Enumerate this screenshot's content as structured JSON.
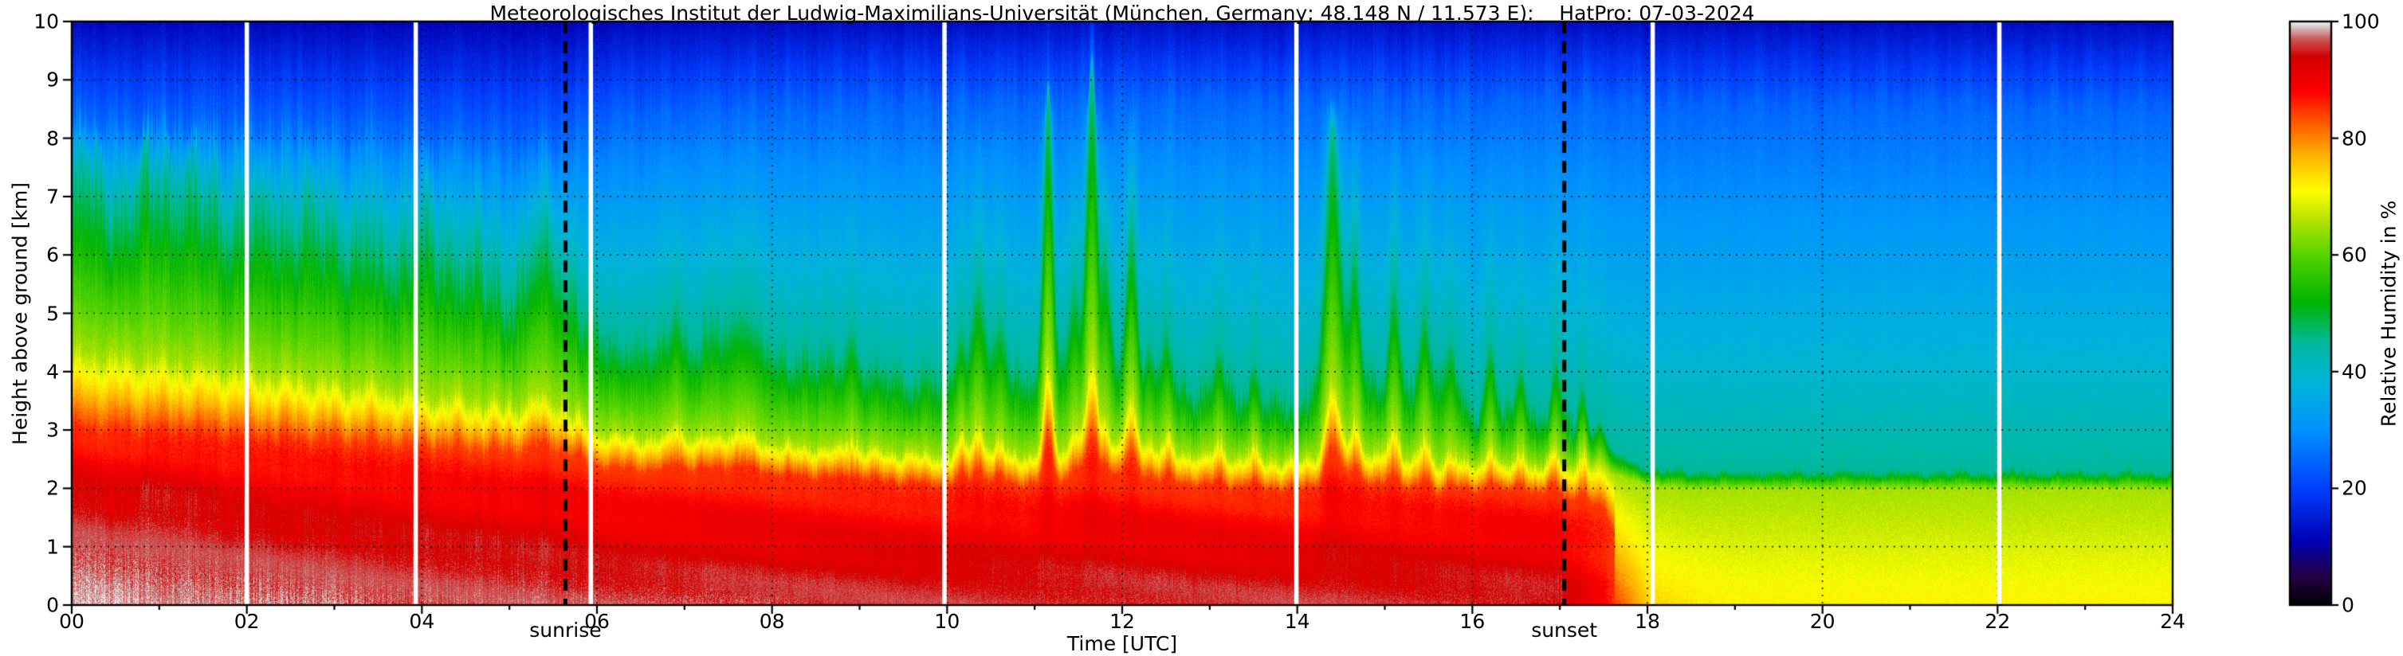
{
  "chart_data": {
    "type": "heatmap",
    "title": "Meteorologisches Institut der Ludwig-Maximilians-Universität (München, Germany; 48.148 N / 11.573 E):    HatPro: 07-03-2024",
    "xlabel": "Time [UTC]",
    "ylabel": "Height above ground [km]",
    "colorbar_label": "Relative Humidity in %",
    "x_range": [
      0,
      24
    ],
    "y_range": [
      0,
      10
    ],
    "value_range": [
      0,
      100
    ],
    "grid": "dotted",
    "legend_position": "right-colorbar",
    "x_tick_labels": [
      "00",
      "02",
      "04",
      "06",
      "08",
      "10",
      "12",
      "14",
      "16",
      "18",
      "20",
      "22",
      "24"
    ],
    "y_tick_labels": [
      "0",
      "1",
      "2",
      "3",
      "4",
      "5",
      "6",
      "7",
      "8",
      "9",
      "10"
    ],
    "colorbar_tick_labels": [
      "0",
      "20",
      "40",
      "60",
      "80",
      "100"
    ],
    "annotations": {
      "sunrise_label": "sunrise",
      "sunrise_time_utc": 5.64,
      "sunset_label": "sunset",
      "sunset_time_utc": 17.05
    },
    "gap_lines_utc": [
      2.0,
      3.93,
      5.93,
      9.97,
      13.99,
      18.06,
      22.02
    ],
    "colormap_stops": [
      [
        0,
        "#000002"
      ],
      [
        5,
        "#250045"
      ],
      [
        11,
        "#0000b4"
      ],
      [
        20,
        "#0040ff"
      ],
      [
        30,
        "#0092ff"
      ],
      [
        38,
        "#00b4dc"
      ],
      [
        45,
        "#00b99e"
      ],
      [
        52,
        "#00b400"
      ],
      [
        60,
        "#55d400"
      ],
      [
        66,
        "#b4e400"
      ],
      [
        71,
        "#ffff00"
      ],
      [
        77,
        "#ffb400"
      ],
      [
        83,
        "#ff5500"
      ],
      [
        88,
        "#ff0000"
      ],
      [
        94,
        "#d40000"
      ],
      [
        97,
        "#cc5555"
      ],
      [
        99,
        "#d9c0c0"
      ],
      [
        100,
        "#f2f2f2"
      ]
    ],
    "profiles": {
      "representation": "Iso-humidity boundary heights (km above ground) sampled every 0.5 h UTC; RH is piecewise-linear in height through these levels.",
      "times_utc": [
        0,
        0.5,
        1,
        1.5,
        2,
        2.5,
        3,
        3.5,
        4,
        4.5,
        5,
        5.5,
        6,
        6.5,
        7,
        7.5,
        8,
        8.5,
        9,
        9.5,
        10,
        10.5,
        11,
        11.5,
        12,
        12.5,
        13,
        13.5,
        14,
        14.5,
        15,
        15.5,
        16,
        16.5,
        17,
        17.5,
        18,
        18.5,
        19,
        19.5,
        20,
        20.5,
        21,
        21.5,
        22,
        22.5,
        23,
        23.5,
        24
      ],
      "rh_at_ground": [
        99,
        99,
        98,
        98,
        98,
        98,
        98,
        97,
        97,
        97,
        97,
        97,
        97,
        97,
        97,
        97,
        97,
        96,
        96,
        96,
        96,
        96,
        96,
        96,
        96,
        96,
        96,
        96,
        96,
        96,
        96,
        96,
        96,
        96,
        95,
        88,
        75,
        73,
        72,
        72,
        72,
        72,
        72,
        72,
        72,
        72,
        72,
        72,
        72
      ],
      "height_rh95": [
        1.7,
        1.5,
        1.8,
        1.4,
        1.2,
        1.1,
        1.0,
        0.9,
        0.9,
        0.8,
        0.8,
        0.7,
        0.5,
        0.45,
        0.45,
        0.5,
        0.4,
        0.4,
        0.4,
        0.35,
        0.35,
        0.35,
        0.35,
        0.4,
        0.4,
        0.35,
        0.3,
        0.3,
        0.3,
        0.4,
        0.3,
        0.3,
        0.3,
        0.3,
        0.25,
        0.15,
        0,
        0,
        0,
        0,
        0,
        0,
        0,
        0,
        0,
        0,
        0,
        0,
        0
      ],
      "height_rh85": [
        3.05,
        3.0,
        3.0,
        2.95,
        2.9,
        2.85,
        2.8,
        2.75,
        2.7,
        2.65,
        2.6,
        2.7,
        2.35,
        2.3,
        2.3,
        2.35,
        2.25,
        2.2,
        2.15,
        2.1,
        2.05,
        2.1,
        2.05,
        2.15,
        2.2,
        2.1,
        2.05,
        2.0,
        1.95,
        2.2,
        2.0,
        1.95,
        1.95,
        1.95,
        1.9,
        1.6,
        0,
        0,
        0,
        0,
        0,
        0,
        0,
        0,
        0,
        0,
        0,
        0,
        0
      ],
      "height_rh65": [
        4.35,
        4.3,
        4.25,
        4.15,
        4.05,
        3.95,
        3.85,
        3.75,
        3.65,
        3.55,
        3.45,
        3.5,
        3.0,
        2.9,
        2.9,
        2.95,
        2.8,
        2.75,
        2.7,
        2.65,
        2.6,
        2.65,
        2.6,
        2.7,
        2.75,
        2.65,
        2.6,
        2.55,
        2.5,
        2.75,
        2.55,
        2.5,
        2.45,
        2.4,
        2.4,
        2.3,
        2.05,
        2.0,
        2.0,
        2.0,
        2.0,
        2.0,
        2.0,
        2.0,
        2.0,
        2.0,
        2.0,
        2.0,
        2.0
      ],
      "height_rh45": [
        7.3,
        7.0,
        7.4,
        6.9,
        6.6,
        6.7,
        6.4,
        6.1,
        6.3,
        5.9,
        5.5,
        6.0,
        4.7,
        4.5,
        4.6,
        4.9,
        4.5,
        4.3,
        4.2,
        4.0,
        3.9,
        4.3,
        4.1,
        4.6,
        4.2,
        3.9,
        3.8,
        3.7,
        3.5,
        5.0,
        3.7,
        4.1,
        3.5,
        3.4,
        3.3,
        2.7,
        2.35,
        2.3,
        2.3,
        2.3,
        2.3,
        2.3,
        2.3,
        2.3,
        2.3,
        2.3,
        2.3,
        2.3,
        2.3
      ],
      "height_rh25": [
        8.35,
        8.3,
        8.35,
        8.3,
        8.25,
        8.25,
        8.2,
        8.15,
        8.1,
        8.05,
        8.0,
        8.0,
        8.2,
        8.3,
        8.4,
        8.45,
        8.5,
        8.5,
        8.55,
        8.55,
        8.55,
        8.6,
        8.6,
        8.65,
        8.6,
        8.6,
        8.6,
        8.6,
        8.6,
        8.7,
        8.6,
        8.6,
        8.6,
        8.6,
        8.6,
        8.55,
        8.5,
        8.5,
        8.5,
        8.5,
        8.5,
        8.5,
        8.5,
        8.5,
        8.5,
        8.5,
        8.5,
        8.5,
        8.5
      ]
    },
    "convective_spikes": [
      {
        "t": 5.35,
        "top": 6.3,
        "w": 0.1
      },
      {
        "t": 5.6,
        "top": 5.6,
        "w": 0.08
      },
      {
        "t": 6.9,
        "top": 5.2,
        "w": 0.06
      },
      {
        "t": 7.65,
        "top": 5.1,
        "w": 0.12
      },
      {
        "t": 8.9,
        "top": 4.8,
        "w": 0.06
      },
      {
        "t": 10.15,
        "top": 4.8,
        "w": 0.05
      },
      {
        "t": 10.35,
        "top": 5.6,
        "w": 0.07
      },
      {
        "t": 10.6,
        "top": 5.0,
        "w": 0.05
      },
      {
        "t": 11.15,
        "top": 8.8,
        "w": 0.05
      },
      {
        "t": 11.45,
        "top": 5.6,
        "w": 0.05
      },
      {
        "t": 11.65,
        "top": 9.2,
        "w": 0.06
      },
      {
        "t": 11.8,
        "top": 6.2,
        "w": 0.05
      },
      {
        "t": 12.1,
        "top": 6.6,
        "w": 0.06
      },
      {
        "t": 12.3,
        "top": 4.6,
        "w": 0.04
      },
      {
        "t": 12.5,
        "top": 4.8,
        "w": 0.05
      },
      {
        "t": 13.1,
        "top": 4.5,
        "w": 0.05
      },
      {
        "t": 13.5,
        "top": 4.2,
        "w": 0.05
      },
      {
        "t": 14.4,
        "top": 8.2,
        "w": 0.07
      },
      {
        "t": 14.65,
        "top": 6.2,
        "w": 0.05
      },
      {
        "t": 15.1,
        "top": 5.6,
        "w": 0.06
      },
      {
        "t": 15.45,
        "top": 5.2,
        "w": 0.05
      },
      {
        "t": 15.75,
        "top": 4.6,
        "w": 0.05
      },
      {
        "t": 16.2,
        "top": 4.6,
        "w": 0.05
      },
      {
        "t": 16.55,
        "top": 4.2,
        "w": 0.05
      },
      {
        "t": 16.95,
        "top": 4.3,
        "w": 0.05
      },
      {
        "t": 17.25,
        "top": 3.8,
        "w": 0.05
      },
      {
        "t": 17.45,
        "top": 3.2,
        "w": 0.06
      }
    ]
  }
}
